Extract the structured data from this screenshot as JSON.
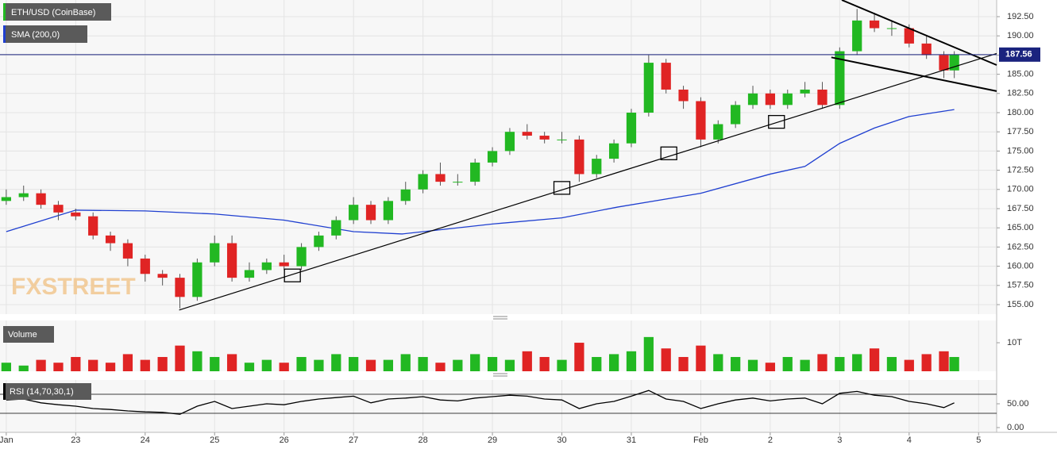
{
  "chart_data": {
    "type": "candlestick",
    "title": "ETH/USD (CoinBase)",
    "watermark": "FXSTREET",
    "up_color": "#22b822",
    "down_color": "#e02424",
    "x": [
      0,
      0.25,
      0.5,
      0.75,
      1,
      1.25,
      1.5,
      1.75,
      2,
      2.25,
      2.5,
      2.75,
      3,
      3.25,
      3.5,
      3.75,
      4,
      4.25,
      4.5,
      4.75,
      5,
      5.25,
      5.5,
      5.75,
      6,
      6.25,
      6.5,
      6.75,
      7,
      7.25,
      7.5,
      7.75,
      8,
      8.25,
      8.5,
      8.75,
      9,
      9.25,
      9.5,
      9.75,
      10,
      10.25,
      10.5,
      10.75,
      11,
      11.25,
      11.5,
      11.75,
      12,
      12.25,
      12.5,
      12.75,
      13,
      13.25,
      13.5,
      13.65
    ],
    "open": [
      168.5,
      169,
      169.5,
      168,
      167,
      166.5,
      164,
      163,
      161,
      159,
      158.5,
      156,
      160.5,
      163,
      158.5,
      159.5,
      160.5,
      160,
      162.5,
      164,
      166,
      168,
      166,
      168.5,
      170,
      172,
      171,
      171,
      173.5,
      175,
      177.5,
      177,
      176.5,
      176.5,
      172,
      174,
      176,
      180,
      186.5,
      183,
      181.5,
      176.5,
      178.5,
      181,
      182.5,
      181,
      182.5,
      183,
      181,
      188,
      192,
      191,
      191,
      189,
      187.5,
      185.5
    ],
    "high": [
      170,
      170.5,
      170,
      168.5,
      167.5,
      167,
      164.5,
      163.5,
      161.5,
      159.5,
      159,
      161,
      164,
      164,
      160.5,
      161,
      161.5,
      163,
      164.5,
      166.5,
      169,
      168.5,
      169,
      171,
      172.5,
      173.5,
      172,
      174,
      175.5,
      178,
      178.5,
      177.5,
      177.5,
      177,
      174.5,
      176.5,
      180.5,
      187.5,
      187,
      183.5,
      182,
      179,
      181.5,
      183.5,
      183,
      183,
      184,
      184,
      188.5,
      193.5,
      193,
      192,
      191.5,
      190,
      188,
      188
    ],
    "low": [
      168,
      168.5,
      167.5,
      166,
      166,
      163.5,
      162,
      160,
      158,
      157.5,
      154.5,
      155.5,
      160,
      158,
      158,
      159,
      159.5,
      159.5,
      162,
      163.5,
      165.5,
      165.5,
      165.5,
      168,
      169.5,
      170.5,
      170.5,
      170.5,
      173,
      174.5,
      176.5,
      176,
      176,
      171,
      171.5,
      173.5,
      175.5,
      179.5,
      182.5,
      180.5,
      175.5,
      176,
      178,
      180.5,
      180.5,
      180.5,
      182,
      180.5,
      180.5,
      187.5,
      190.5,
      190,
      188.5,
      187,
      184.5,
      184.5
    ],
    "close": [
      169,
      169.5,
      168,
      167,
      166.5,
      164,
      163,
      161,
      159,
      158.5,
      156,
      160.5,
      163,
      158.5,
      159.5,
      160.5,
      160,
      162.5,
      164,
      166,
      168,
      166,
      168.5,
      170,
      172,
      171,
      171,
      173.5,
      175,
      177.5,
      177,
      176.5,
      176.5,
      172,
      174,
      176,
      180,
      186.5,
      183,
      181.5,
      176.5,
      178.5,
      181,
      182.5,
      181,
      182.5,
      183,
      181,
      188,
      192,
      191,
      191,
      189,
      187.5,
      185.5,
      187.56
    ],
    "last_price": 187.56,
    "last_price_color": "#1a237e",
    "xlim": [
      -0.09,
      14.26
    ],
    "xticks": [
      {
        "value": 0,
        "label": "Jan"
      },
      {
        "value": 1,
        "label": "23"
      },
      {
        "value": 2,
        "label": "24"
      },
      {
        "value": 3,
        "label": "25"
      },
      {
        "value": 4,
        "label": "26"
      },
      {
        "value": 5,
        "label": "27"
      },
      {
        "value": 6,
        "label": "28"
      },
      {
        "value": 7,
        "label": "29"
      },
      {
        "value": 8,
        "label": "30"
      },
      {
        "value": 9,
        "label": "31"
      },
      {
        "value": 10,
        "label": "Feb"
      },
      {
        "value": 11,
        "label": "2"
      },
      {
        "value": 12,
        "label": "3"
      },
      {
        "value": 13,
        "label": "4"
      },
      {
        "value": 14,
        "label": "5"
      }
    ],
    "ylim": [
      153.76,
      194.67
    ],
    "yticks": [
      {
        "value": 155,
        "label": "155.00"
      },
      {
        "value": 157.5,
        "label": "157.50"
      },
      {
        "value": 160,
        "label": "160.00"
      },
      {
        "value": 162.5,
        "label": "162.50"
      },
      {
        "value": 165,
        "label": "165.00"
      },
      {
        "value": 167.5,
        "label": "167.50"
      },
      {
        "value": 170,
        "label": "170.00"
      },
      {
        "value": 172.5,
        "label": "172.50"
      },
      {
        "value": 175,
        "label": "175.00"
      },
      {
        "value": 177.5,
        "label": "177.50"
      },
      {
        "value": 180,
        "label": "180.00"
      },
      {
        "value": 182.5,
        "label": "182.50"
      },
      {
        "value": 185,
        "label": "185.00"
      },
      {
        "value": 187.5,
        "label": "187.50"
      },
      {
        "value": 190,
        "label": "190.00"
      },
      {
        "value": 192.5,
        "label": "192.50"
      }
    ],
    "grid": true,
    "sma": {
      "name": "SMA (200,0)",
      "color": "#1f3fd0",
      "x": [
        0,
        1,
        2,
        3,
        4,
        5,
        5.7,
        7,
        8,
        8.8,
        10,
        11,
        11.5,
        12,
        12.5,
        13,
        13.65
      ],
      "values": [
        164.5,
        167.3,
        167.2,
        166.8,
        166,
        164.5,
        164.2,
        165.5,
        166.3,
        167.7,
        169.5,
        172,
        173,
        176,
        178,
        179.5,
        180.4
      ]
    },
    "trendlines": [
      {
        "x": [
          2.49,
          14.26
        ],
        "y": [
          154.3,
          187.7
        ]
      },
      {
        "x": [
          12.03,
          14.26
        ],
        "y": [
          194.67,
          186.2
        ]
      },
      {
        "x": [
          11.88,
          14.26
        ],
        "y": [
          187.2,
          182.8
        ]
      }
    ],
    "markers": {
      "x": [
        4.12,
        8.0,
        9.54,
        11.09
      ],
      "y": [
        158.8,
        170.2,
        174.7,
        178.8
      ]
    },
    "volume": {
      "title": "Volume",
      "values": [
        3,
        2,
        4,
        3,
        5,
        4,
        3,
        6,
        4,
        5,
        9,
        7,
        5,
        6,
        3,
        4,
        3,
        5,
        4,
        6,
        5,
        4,
        4,
        6,
        5,
        3,
        4,
        6,
        5,
        4,
        7,
        5,
        4,
        10,
        5,
        6,
        7,
        12,
        8,
        5,
        9,
        6,
        5,
        4,
        3,
        5,
        4,
        6,
        5,
        6,
        8,
        5,
        4,
        6,
        7,
        5
      ],
      "ylim": [
        0,
        17.8
      ],
      "yticks": [
        {
          "value": 10,
          "label": "10T"
        }
      ]
    },
    "rsi": {
      "title": "RSI (14,70,30,1)",
      "color": "#000000",
      "values": [
        58,
        60,
        52,
        48,
        45,
        40,
        38,
        35,
        33,
        32,
        28,
        45,
        55,
        40,
        45,
        50,
        48,
        55,
        60,
        63,
        66,
        52,
        60,
        62,
        65,
        58,
        56,
        62,
        65,
        68,
        66,
        60,
        58,
        40,
        50,
        55,
        66,
        78,
        60,
        55,
        40,
        50,
        58,
        62,
        56,
        60,
        62,
        50,
        72,
        76,
        68,
        65,
        55,
        50,
        42,
        52
      ],
      "levels": [
        70,
        30
      ],
      "ylim": [
        -10,
        100
      ],
      "yticks": [
        {
          "value": 50,
          "label": "50.00"
        },
        {
          "value": 0,
          "label": "0.00"
        }
      ]
    }
  }
}
